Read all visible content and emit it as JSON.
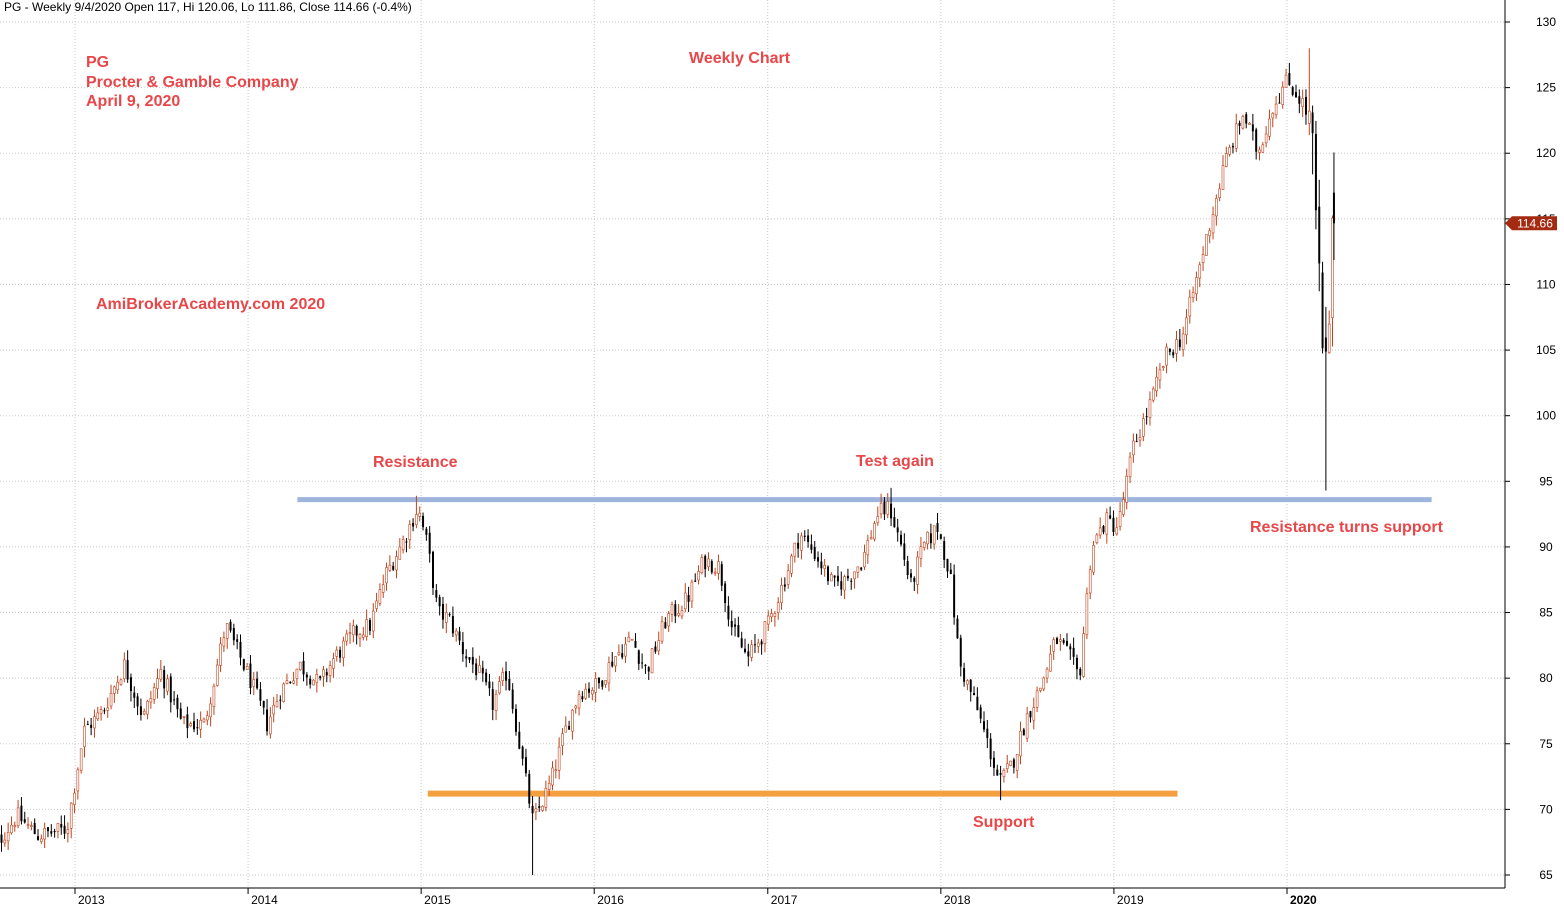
{
  "header": {
    "text": "PG - Weekly 9/4/2020 Open 117, Hi 120.06, Lo 111.86, Close 114.66 (-0.4%)"
  },
  "annotations": {
    "ticker": "PG",
    "company": "Procter & Gamble Company",
    "date": "April 9, 2020",
    "chart_title": "Weekly Chart",
    "watermark": "AmiBrokerAcademy.com  2020",
    "resistance": "Resistance",
    "test_again": "Test again",
    "resistance_support": "Resistance turns support",
    "support": "Support"
  },
  "colors": {
    "up_candle": "#c0431c",
    "down_candle": "#000000",
    "resistance_line": "#9db5dc",
    "support_line": "#f4a040",
    "price_tag": "#a52a12",
    "grid": "#c8c8c8",
    "annotation_text": "#e8474a"
  },
  "chart_data": {
    "type": "candlestick",
    "title": "Weekly Chart",
    "ylim": [
      64,
      131
    ],
    "yticks": [
      65,
      70,
      75,
      80,
      85,
      90,
      95,
      100,
      105,
      110,
      115,
      120,
      125,
      130
    ],
    "ytick_labels": [
      "65",
      "70",
      "75",
      "80",
      "85",
      "90",
      "95",
      "100",
      "105",
      "110",
      "115",
      "120",
      "125",
      "130"
    ],
    "xlim": [
      "2012-07-01",
      "2020-12-31"
    ],
    "xticks": [
      "2013-01-01",
      "2014-01-01",
      "2015-01-01",
      "2016-01-01",
      "2017-01-01",
      "2018-01-01",
      "2019-01-01",
      "2020-01-01"
    ],
    "xtick_labels": [
      "2013",
      "2014",
      "2015",
      "2016",
      "2017",
      "2018",
      "2019",
      "2020"
    ],
    "grid": true,
    "last_price": 114.66,
    "last_price_label": "114.66",
    "resistance_level": {
      "value": 93.6,
      "from": "2014-04-15",
      "to": "2020-11-01"
    },
    "support_level": {
      "value": 71.2,
      "from": "2015-01-15",
      "to": "2019-05-15"
    },
    "price_path": [
      [
        "2012-07-02",
        66.5
      ],
      [
        "2012-09-01",
        69.5
      ],
      [
        "2012-10-15",
        68.0
      ],
      [
        "2012-12-15",
        68.5
      ],
      [
        "2013-01-20",
        76.0
      ],
      [
        "2013-03-01",
        77.5
      ],
      [
        "2013-04-15",
        81.0
      ],
      [
        "2013-05-25",
        77.0
      ],
      [
        "2013-07-01",
        80.5
      ],
      [
        "2013-08-15",
        76.5
      ],
      [
        "2013-10-01",
        76.5
      ],
      [
        "2013-11-15",
        84.0
      ],
      [
        "2013-12-10",
        82.0
      ],
      [
        "2014-01-10",
        79.5
      ],
      [
        "2014-02-10",
        76.5
      ],
      [
        "2014-03-10",
        79.0
      ],
      [
        "2014-04-20",
        81.0
      ],
      [
        "2014-06-01",
        79.5
      ],
      [
        "2014-07-01",
        81.5
      ],
      [
        "2014-08-15",
        83.5
      ],
      [
        "2014-09-15",
        84.0
      ],
      [
        "2014-10-20",
        88.0
      ],
      [
        "2014-11-25",
        90.5
      ],
      [
        "2014-12-25",
        93.0
      ],
      [
        "2015-01-15",
        90.0
      ],
      [
        "2015-02-05",
        85.0
      ],
      [
        "2015-03-01",
        84.5
      ],
      [
        "2015-04-01",
        82.0
      ],
      [
        "2015-05-01",
        80.5
      ],
      [
        "2015-06-01",
        78.0
      ],
      [
        "2015-07-01",
        80.5
      ],
      [
        "2015-07-20",
        76.5
      ],
      [
        "2015-08-25",
        69.0
      ],
      [
        "2015-10-01",
        72.0
      ],
      [
        "2015-11-01",
        76.0
      ],
      [
        "2015-12-01",
        79.0
      ],
      [
        "2016-01-10",
        79.5
      ],
      [
        "2016-02-10",
        81.5
      ],
      [
        "2016-03-20",
        83.0
      ],
      [
        "2016-04-20",
        80.5
      ],
      [
        "2016-06-01",
        84.5
      ],
      [
        "2016-07-15",
        86.0
      ],
      [
        "2016-08-20",
        89.0
      ],
      [
        "2016-09-20",
        88.5
      ],
      [
        "2016-10-20",
        83.5
      ],
      [
        "2016-11-20",
        81.5
      ],
      [
        "2017-01-01",
        84.0
      ],
      [
        "2017-02-10",
        88.0
      ],
      [
        "2017-03-10",
        91.0
      ],
      [
        "2017-04-10",
        89.5
      ],
      [
        "2017-05-20",
        87.0
      ],
      [
        "2017-06-15",
        87.5
      ],
      [
        "2017-07-20",
        89.0
      ],
      [
        "2017-08-20",
        92.5
      ],
      [
        "2017-09-15",
        93.0
      ],
      [
        "2017-10-10",
        90.0
      ],
      [
        "2017-10-30",
        87.0
      ],
      [
        "2017-11-25",
        90.0
      ],
      [
        "2017-12-25",
        91.5
      ],
      [
        "2018-01-20",
        88.0
      ],
      [
        "2018-02-10",
        81.0
      ],
      [
        "2018-03-15",
        78.0
      ],
      [
        "2018-04-10",
        75.0
      ],
      [
        "2018-05-05",
        72.0
      ],
      [
        "2018-06-01",
        73.5
      ],
      [
        "2018-07-01",
        77.0
      ],
      [
        "2018-08-01",
        79.5
      ],
      [
        "2018-09-01",
        83.0
      ],
      [
        "2018-10-01",
        81.5
      ],
      [
        "2018-10-20",
        80.0
      ],
      [
        "2018-11-15",
        90.0
      ],
      [
        "2018-12-15",
        92.0
      ],
      [
        "2019-01-10",
        91.5
      ],
      [
        "2019-02-10",
        97.5
      ],
      [
        "2019-03-20",
        101.0
      ],
      [
        "2019-04-20",
        104.5
      ],
      [
        "2019-05-25",
        106.0
      ],
      [
        "2019-06-25",
        110.5
      ],
      [
        "2019-07-25",
        115.0
      ],
      [
        "2019-08-25",
        119.5
      ],
      [
        "2019-10-01",
        123.0
      ],
      [
        "2019-11-01",
        120.0
      ],
      [
        "2019-12-01",
        123.5
      ],
      [
        "2020-01-01",
        125.5
      ],
      [
        "2020-02-01",
        124.0
      ],
      [
        "2020-02-20",
        122.0
      ],
      [
        "2020-03-05",
        113.0
      ],
      [
        "2020-03-20",
        101.0
      ],
      [
        "2020-04-09",
        114.66
      ]
    ],
    "notable_extremes": [
      {
        "date": "2014-12-25",
        "high": 93.9
      },
      {
        "date": "2015-08-25",
        "low": 65.0
      },
      {
        "date": "2017-09-15",
        "high": 94.5
      },
      {
        "date": "2018-05-05",
        "low": 70.7
      },
      {
        "date": "2020-02-20",
        "high": 128.0
      },
      {
        "date": "2020-03-20",
        "low": 94.3
      }
    ]
  }
}
